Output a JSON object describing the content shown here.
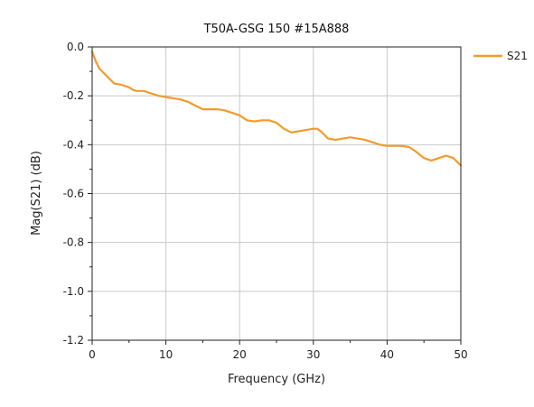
{
  "chart_data": {
    "type": "line",
    "title": "T50A-GSG 150 #15A888",
    "xlabel": "Frequency (GHz)",
    "ylabel": "Mag(S21) (dB)",
    "xlim": [
      0,
      50
    ],
    "ylim": [
      -1.2,
      0.0
    ],
    "xticks": [
      0,
      10,
      20,
      30,
      40,
      50
    ],
    "xtick_labels": [
      "0",
      "10",
      "20",
      "30",
      "40",
      "50"
    ],
    "yticks": [
      0.0,
      -0.2,
      -0.4,
      -0.6,
      -0.8,
      -1.0,
      -1.2
    ],
    "ytick_labels": [
      "0.0",
      "-0.2",
      "-0.4",
      "-0.6",
      "-0.8",
      "-1.0",
      "-1.2"
    ],
    "grid": true,
    "legend_position": "top-right outside",
    "series": [
      {
        "name": "S21",
        "color": "#f39a2b",
        "x": [
          0,
          0.5,
          1,
          2,
          3,
          4,
          5,
          5.5,
          6,
          7,
          8,
          9,
          10,
          11,
          12,
          13,
          14,
          15,
          16,
          17,
          18,
          19,
          20,
          21,
          22,
          23,
          24,
          25,
          26,
          27,
          28,
          29,
          30,
          30.5,
          31,
          32,
          33,
          34,
          35,
          36,
          37,
          38,
          39,
          40,
          41,
          42,
          43,
          44,
          45,
          46,
          47,
          48,
          49,
          50
        ],
        "y": [
          -0.02,
          -0.06,
          -0.09,
          -0.12,
          -0.15,
          -0.155,
          -0.165,
          -0.175,
          -0.18,
          -0.18,
          -0.19,
          -0.2,
          -0.205,
          -0.21,
          -0.215,
          -0.225,
          -0.24,
          -0.255,
          -0.255,
          -0.255,
          -0.26,
          -0.27,
          -0.28,
          -0.3,
          -0.305,
          -0.3,
          -0.3,
          -0.31,
          -0.335,
          -0.35,
          -0.345,
          -0.34,
          -0.335,
          -0.335,
          -0.345,
          -0.375,
          -0.38,
          -0.375,
          -0.37,
          -0.375,
          -0.38,
          -0.39,
          -0.4,
          -0.405,
          -0.405,
          -0.405,
          -0.41,
          -0.43,
          -0.455,
          -0.465,
          -0.455,
          -0.445,
          -0.455,
          -0.485
        ]
      }
    ]
  }
}
